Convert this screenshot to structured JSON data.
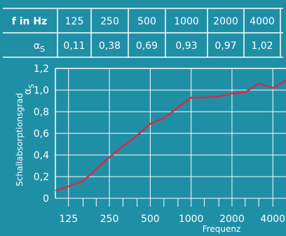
{
  "colors": {
    "background": "#1f8fa6",
    "grid": "#ffffff",
    "line": "#d62b4a"
  },
  "table": {
    "header_label": "f in Hz",
    "row_label": "α",
    "row_label_sub": "S",
    "frequencies": [
      "125",
      "250",
      "500",
      "1000",
      "2000",
      "4000"
    ],
    "values": [
      "0,11",
      "0,38",
      "0,69",
      "0,93",
      "0,97",
      "1,02"
    ]
  },
  "chart_data": {
    "type": "line",
    "xlabel": "Frequenz",
    "ylabel": "Schallabsorptionsgrad",
    "ylabel_symbol": "α",
    "ylabel_symbol_sub": "S",
    "x_scale": "log",
    "xlim": [
      100,
      5000
    ],
    "ylim": [
      0,
      1.2
    ],
    "xticks": [
      {
        "value": 125,
        "label": "125"
      },
      {
        "value": 250,
        "label": "250"
      },
      {
        "value": 500,
        "label": "500"
      },
      {
        "value": 1000,
        "label": "1000"
      },
      {
        "value": 2000,
        "label": "2000"
      },
      {
        "value": 4000,
        "label": "4000"
      }
    ],
    "yticks": [
      {
        "value": 0,
        "label": "0"
      },
      {
        "value": 0.2,
        "label": "0,2"
      },
      {
        "value": 0.4,
        "label": "0,4"
      },
      {
        "value": 0.6,
        "label": "0,6"
      },
      {
        "value": 0.8,
        "label": "0,8"
      },
      {
        "value": 1.0,
        "label": "1,0"
      },
      {
        "value": 1.2,
        "label": "1,2"
      }
    ],
    "grid": true,
    "series": [
      {
        "x": [
          100,
          125,
          160,
          200,
          250,
          315,
          400,
          500,
          630,
          800,
          1000,
          1250,
          1600,
          2000,
          2500,
          3150,
          4000,
          5000
        ],
        "values": [
          0.07,
          0.11,
          0.16,
          0.27,
          0.38,
          0.48,
          0.58,
          0.69,
          0.74,
          0.84,
          0.93,
          0.93,
          0.94,
          0.97,
          0.98,
          1.06,
          1.02,
          1.09
        ]
      }
    ]
  }
}
